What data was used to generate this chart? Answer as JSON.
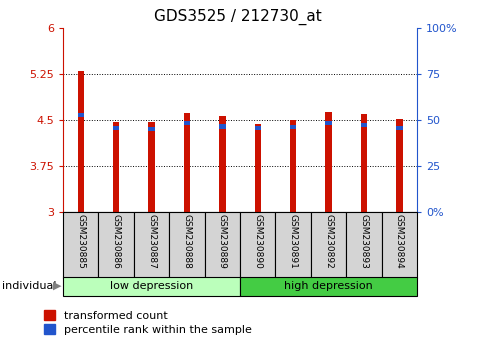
{
  "title": "GDS3525 / 212730_at",
  "samples": [
    "GSM230885",
    "GSM230886",
    "GSM230887",
    "GSM230888",
    "GSM230889",
    "GSM230890",
    "GSM230891",
    "GSM230892",
    "GSM230893",
    "GSM230894"
  ],
  "red_values": [
    5.3,
    4.47,
    4.47,
    4.62,
    4.57,
    4.44,
    4.51,
    4.63,
    4.6,
    4.52
  ],
  "blue_values": [
    4.58,
    4.38,
    4.36,
    4.46,
    4.4,
    4.37,
    4.39,
    4.46,
    4.42,
    4.38
  ],
  "ymin": 3.0,
  "ymax": 6.0,
  "yticks": [
    3.0,
    3.75,
    4.5,
    5.25,
    6.0
  ],
  "ytick_labels": [
    "3",
    "3.75",
    "4.5",
    "5.25",
    "6"
  ],
  "right_yticks": [
    0,
    25,
    50,
    75,
    100
  ],
  "right_ytick_labels": [
    "0%",
    "25",
    "50",
    "75",
    "100%"
  ],
  "groups": [
    {
      "label": "low depression",
      "start": 0,
      "end": 5,
      "color": "#bbffbb"
    },
    {
      "label": "high depression",
      "start": 5,
      "end": 10,
      "color": "#44cc44"
    }
  ],
  "bar_color": "#cc1100",
  "blue_color": "#2255cc",
  "bar_width": 0.18,
  "legend_red": "transformed count",
  "legend_blue": "percentile rank within the sample",
  "individual_label": "individual"
}
